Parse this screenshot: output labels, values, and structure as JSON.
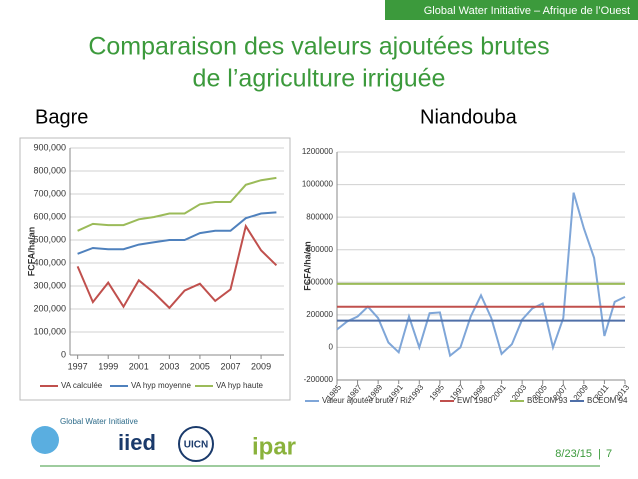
{
  "header": {
    "banner": "Global Water Initiative – Afrique de l’Ouest",
    "title": [
      "Comparaison des valeurs ajoutées brutes",
      "de l’agriculture irriguée"
    ],
    "left_label": "Bagre",
    "right_label": "Niandouba"
  },
  "chart_data": [
    {
      "type": "line",
      "ylabel": "FCFA/ha/an",
      "x": [
        1997,
        1998,
        1999,
        2000,
        2001,
        2002,
        2003,
        2004,
        2005,
        2006,
        2007,
        2008,
        2009,
        2010
      ],
      "xlim": [
        1996.5,
        2010.5
      ],
      "xticks": [
        1997,
        1999,
        2001,
        2003,
        2005,
        2007,
        2009
      ],
      "ylim": [
        0,
        900000
      ],
      "yticks": [
        0,
        {
          "value": 100000,
          "label": "100,000"
        },
        {
          "value": 200000,
          "label": "200,000"
        },
        {
          "value": 300000,
          "label": "300,000"
        },
        {
          "value": 400000,
          "label": "400,000"
        },
        {
          "value": 500000,
          "label": "500,000"
        },
        {
          "value": 600000,
          "label": "600,000"
        },
        {
          "value": 700000,
          "label": "700,000"
        },
        {
          "value": 800000,
          "label": "800,000"
        },
        {
          "value": 900000,
          "label": "900,000"
        }
      ],
      "grid": true,
      "legend": "bottom",
      "series": [
        {
          "name": "VA calculée",
          "color": "#c0504d",
          "values": [
            385000,
            230000,
            315000,
            210000,
            325000,
            270000,
            205000,
            280000,
            310000,
            235000,
            285000,
            560000,
            455000,
            390000
          ]
        },
        {
          "name": "VA hyp moyenne",
          "color": "#4f81bd",
          "values": [
            440000,
            465000,
            460000,
            460000,
            480000,
            490000,
            500000,
            500000,
            530000,
            540000,
            540000,
            595000,
            615000,
            620000
          ]
        },
        {
          "name": "VA hyp haute",
          "color": "#9bbb59",
          "values": [
            540000,
            570000,
            565000,
            565000,
            590000,
            600000,
            615000,
            615000,
            655000,
            665000,
            665000,
            740000,
            760000,
            770000
          ]
        }
      ]
    },
    {
      "type": "line",
      "ylabel": "FCFA/ha/an",
      "x": [
        1985,
        1986,
        1987,
        1988,
        1989,
        1990,
        1991,
        1992,
        1993,
        1994,
        1995,
        1996,
        1997,
        1998,
        1999,
        2000,
        2001,
        2002,
        2003,
        2004,
        2005,
        2006,
        2007,
        2008,
        2009,
        2010,
        2011,
        2012,
        2013
      ],
      "xlim": [
        1985,
        2013
      ],
      "xticks": [
        1985,
        1987,
        1989,
        1991,
        1993,
        1995,
        1997,
        1999,
        2001,
        2003,
        2005,
        2007,
        2009,
        2011,
        2013
      ],
      "ylim": [
        -200000,
        1200000
      ],
      "yticks": [
        -200000,
        0,
        200000,
        400000,
        600000,
        800000,
        1000000,
        1200000
      ],
      "grid": true,
      "legend": "bottom",
      "series": [
        {
          "name": "Valeur ajoutée brute / Riz",
          "color": "#7fa6d8",
          "values": [
            110000,
            160000,
            190000,
            250000,
            180000,
            30000,
            -30000,
            190000,
            0,
            210000,
            215000,
            -50000,
            0,
            190000,
            320000,
            180000,
            -40000,
            20000,
            170000,
            240000,
            270000,
            0,
            180000,
            950000,
            730000,
            550000,
            70000,
            280000,
            310000
          ]
        },
        {
          "name": "EWI 1980",
          "color": "#c0504d",
          "values": [
            250000,
            250000,
            250000,
            250000,
            250000,
            250000,
            250000,
            250000,
            250000,
            250000,
            250000,
            250000,
            250000,
            250000,
            250000,
            250000,
            250000,
            250000,
            250000,
            250000,
            250000,
            250000,
            250000,
            250000,
            250000,
            250000,
            250000,
            250000,
            250000
          ]
        },
        {
          "name": "BCEOM 93",
          "color": "#9bbb59",
          "values": [
            390000,
            390000,
            390000,
            390000,
            390000,
            390000,
            390000,
            390000,
            390000,
            390000,
            390000,
            390000,
            390000,
            390000,
            390000,
            390000,
            390000,
            390000,
            390000,
            390000,
            390000,
            390000,
            390000,
            390000,
            390000,
            390000,
            390000,
            390000,
            390000
          ]
        },
        {
          "name": "BCEOM 94",
          "color": "#4f6fa8",
          "values": [
            165000,
            165000,
            165000,
            165000,
            165000,
            165000,
            165000,
            165000,
            165000,
            165000,
            165000,
            165000,
            165000,
            165000,
            165000,
            165000,
            165000,
            165000,
            165000,
            165000,
            165000,
            165000,
            165000,
            165000,
            165000,
            165000,
            165000,
            165000,
            165000
          ]
        }
      ]
    }
  ],
  "footer": {
    "logos": [
      "Global Water Initiative",
      "iied",
      "UICN",
      "ipar"
    ],
    "date": "8/23/15",
    "page": "7"
  }
}
